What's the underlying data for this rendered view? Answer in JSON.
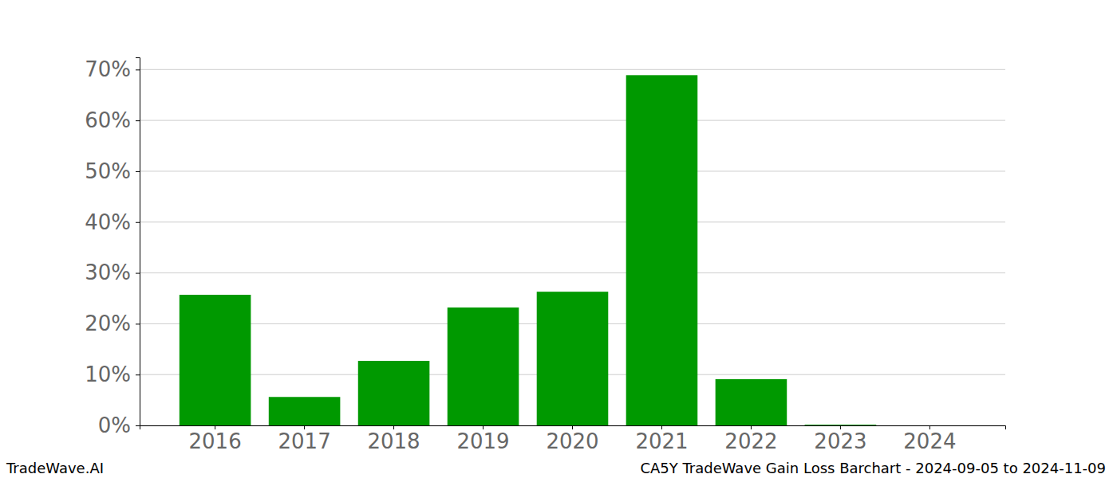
{
  "chart_data": {
    "type": "bar",
    "title": "CA5Y TradeWave Gain Loss Barchart - 2024-09-05 to 2024-11-09",
    "annotations": [
      "TradeWave.AI"
    ],
    "categories": [
      "2016",
      "2017",
      "2018",
      "2019",
      "2020",
      "2021",
      "2022",
      "2023",
      "2024"
    ],
    "values": [
      25.7,
      5.6,
      12.7,
      23.2,
      26.3,
      68.9,
      9.1,
      0.15,
      0
    ],
    "color": "#009900",
    "ylim": [
      0,
      72.4
    ],
    "yticks": [
      {
        "value": 0,
        "label": "0%"
      },
      {
        "value": 10,
        "label": "10%"
      },
      {
        "value": 20,
        "label": "20%"
      },
      {
        "value": 30,
        "label": "30%"
      },
      {
        "value": 40,
        "label": "40%"
      },
      {
        "value": 50,
        "label": "50%"
      },
      {
        "value": 60,
        "label": "60%"
      },
      {
        "value": 70,
        "label": "70%"
      }
    ],
    "grid": true
  }
}
